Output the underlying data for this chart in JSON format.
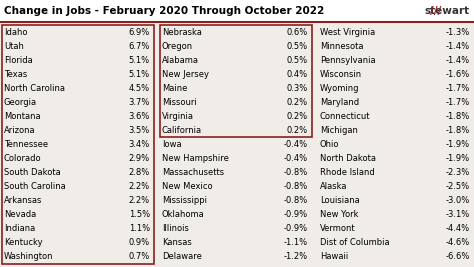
{
  "title": "Change in Jobs - February 2020 Through October 2022",
  "logo_text": "///stewart",
  "background_color": "#f0ede8",
  "title_bg_color": "#ffffff",
  "border_color": "#8B2020",
  "title_fontsize": 7.5,
  "logo_fontsize": 7.5,
  "data_fontsize": 6.0,
  "col1": [
    [
      "Idaho",
      "6.9%"
    ],
    [
      "Utah",
      "6.7%"
    ],
    [
      "Florida",
      "5.1%"
    ],
    [
      "Texas",
      "5.1%"
    ],
    [
      "North Carolina",
      "4.5%"
    ],
    [
      "Georgia",
      "3.7%"
    ],
    [
      "Montana",
      "3.6%"
    ],
    [
      "Arizona",
      "3.5%"
    ],
    [
      "Tennessee",
      "3.4%"
    ],
    [
      "Colorado",
      "2.9%"
    ],
    [
      "South Dakota",
      "2.8%"
    ],
    [
      "South Carolina",
      "2.2%"
    ],
    [
      "Arkansas",
      "2.2%"
    ],
    [
      "Nevada",
      "1.5%"
    ],
    [
      "Indiana",
      "1.1%"
    ],
    [
      "Kentucky",
      "0.9%"
    ],
    [
      "Washington",
      "0.7%"
    ]
  ],
  "col2_box": [
    [
      "Nebraska",
      "0.6%"
    ],
    [
      "Oregon",
      "0.5%"
    ],
    [
      "Alabama",
      "0.5%"
    ],
    [
      "New Jersey",
      "0.4%"
    ],
    [
      "Maine",
      "0.3%"
    ],
    [
      "Missouri",
      "0.2%"
    ],
    [
      "Virginia",
      "0.2%"
    ],
    [
      "California",
      "0.2%"
    ]
  ],
  "col2_nobox": [
    [
      "Iowa",
      "-0.4%"
    ],
    [
      "New Hampshire",
      "-0.4%"
    ],
    [
      "Massachusetts",
      "-0.8%"
    ],
    [
      "New Mexico",
      "-0.8%"
    ],
    [
      "Mississippi",
      "-0.8%"
    ],
    [
      "Oklahoma",
      "-0.9%"
    ],
    [
      "Illinois",
      "-0.9%"
    ],
    [
      "Kansas",
      "-1.1%"
    ],
    [
      "Delaware",
      "-1.2%"
    ]
  ],
  "col3": [
    [
      "West Virginia",
      "-1.3%"
    ],
    [
      "Minnesota",
      "-1.4%"
    ],
    [
      "Pennsylvania",
      "-1.4%"
    ],
    [
      "Wisconsin",
      "-1.6%"
    ],
    [
      "Wyoming",
      "-1.7%"
    ],
    [
      "Maryland",
      "-1.7%"
    ],
    [
      "Connecticut",
      "-1.8%"
    ],
    [
      "Michigan",
      "-1.8%"
    ],
    [
      "Ohio",
      "-1.9%"
    ],
    [
      "North Dakota",
      "-1.9%"
    ],
    [
      "Rhode Island",
      "-2.3%"
    ],
    [
      "Alaska",
      "-2.5%"
    ],
    [
      "Louisiana",
      "-3.0%"
    ],
    [
      "New York",
      "-3.1%"
    ],
    [
      "Vermont",
      "-4.4%"
    ],
    [
      "Dist of Columbia",
      "-4.6%"
    ],
    [
      "Hawaii",
      "-6.6%"
    ]
  ]
}
